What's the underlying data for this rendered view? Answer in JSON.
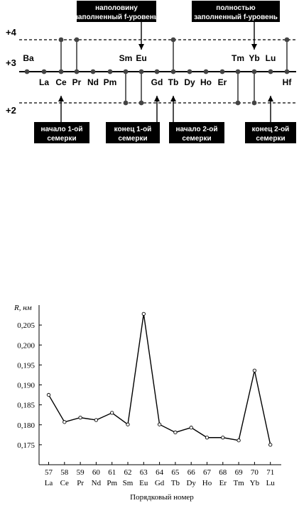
{
  "diagram": {
    "levels": [
      "+4",
      "+3",
      "+2"
    ],
    "elements": [
      {
        "symbol": "Ba",
        "state": 3
      },
      {
        "symbol": "La",
        "state": 3
      },
      {
        "symbol": "Ce",
        "state": 4
      },
      {
        "symbol": "Pr",
        "state": 4
      },
      {
        "symbol": "Nd",
        "state": 3
      },
      {
        "symbol": "Pm",
        "state": 3
      },
      {
        "symbol": "Sm",
        "state": 2
      },
      {
        "symbol": "Eu",
        "state": 2
      },
      {
        "symbol": "Gd",
        "state": 3
      },
      {
        "symbol": "Tb",
        "state": 4
      },
      {
        "symbol": "Dy",
        "state": 3
      },
      {
        "symbol": "Ho",
        "state": 3
      },
      {
        "symbol": "Er",
        "state": 3
      },
      {
        "symbol": "Tm",
        "state": 2
      },
      {
        "symbol": "Yb",
        "state": 2
      },
      {
        "symbol": "Lu",
        "state": 3
      },
      {
        "symbol": "Hf",
        "state": 4
      }
    ],
    "callouts": {
      "half_filled": [
        "наполовину",
        "заполненный f-уровень"
      ],
      "fully_filled": [
        "полностью",
        "заполненный f-уровень"
      ],
      "start_first": [
        "начало 1-ой",
        "семерки"
      ],
      "end_first": [
        "конец 1-ой",
        "семерки"
      ],
      "start_second": [
        "начало 2-ой",
        "семерки"
      ],
      "end_second": [
        "конец 2-ой",
        "семерки"
      ]
    }
  },
  "chart_data": {
    "type": "line",
    "ylabel": "R, нм",
    "xlabel": "Порядковый номер",
    "x": [
      57,
      58,
      59,
      60,
      61,
      62,
      63,
      64,
      65,
      66,
      67,
      68,
      69,
      70,
      71
    ],
    "categories": [
      "La",
      "Ce",
      "Pr",
      "Nd",
      "Pm",
      "Sm",
      "Eu",
      "Gd",
      "Tb",
      "Dy",
      "Ho",
      "Er",
      "Tm",
      "Yb",
      "Lu"
    ],
    "values": [
      0.1875,
      0.1807,
      0.1818,
      0.1812,
      0.183,
      0.1801,
      0.2078,
      0.1801,
      0.1781,
      0.1793,
      0.1768,
      0.1768,
      0.1761,
      0.1936,
      0.175
    ],
    "ylim": [
      0.17,
      0.21
    ],
    "yticks": [
      "0,175",
      "0,180",
      "0,185",
      "0,190",
      "0,195",
      "0,200",
      "0,205"
    ],
    "grid": false,
    "colors": {
      "line": "#000000",
      "marker_fill": "#ffffff"
    }
  }
}
